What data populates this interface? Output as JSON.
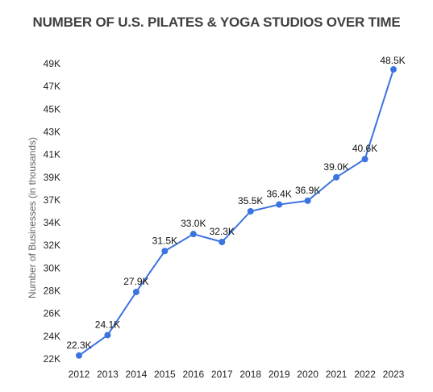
{
  "chart_data": {
    "type": "line",
    "title": "NUMBER OF U.S. PILATES & YOGA STUDIOS OVER TIME",
    "xlabel": "",
    "ylabel": "Number of Businesses (in thousands)",
    "categories": [
      "2012",
      "2013",
      "2014",
      "2015",
      "2016",
      "2017",
      "2018",
      "2019",
      "2020",
      "2021",
      "2022",
      "2023"
    ],
    "series": [
      {
        "values": [
          22.3,
          24.1,
          27.9,
          31.5,
          33.0,
          32.3,
          35.5,
          36.4,
          36.9,
          39.0,
          40.6,
          48.5
        ],
        "labels": [
          "22.3K",
          "24.1K",
          "27.9K",
          "31.5K",
          "33.0K",
          "32.3K",
          "35.5K",
          "36.4K",
          "36.9K",
          "39.0K",
          "40.6K",
          "48.5K"
        ],
        "color": "#3b73e0"
      }
    ],
    "yticks": [
      22,
      24,
      26,
      28,
      30,
      32,
      34,
      37,
      39,
      41,
      43,
      45,
      47,
      49
    ],
    "ytick_labels": [
      "22K",
      "24K",
      "26K",
      "28K",
      "30K",
      "32K",
      "34K",
      "37K",
      "39K",
      "41K",
      "43K",
      "45K",
      "47K",
      "49K"
    ],
    "ylim": [
      22,
      49
    ],
    "grid": false,
    "legend": "none"
  }
}
